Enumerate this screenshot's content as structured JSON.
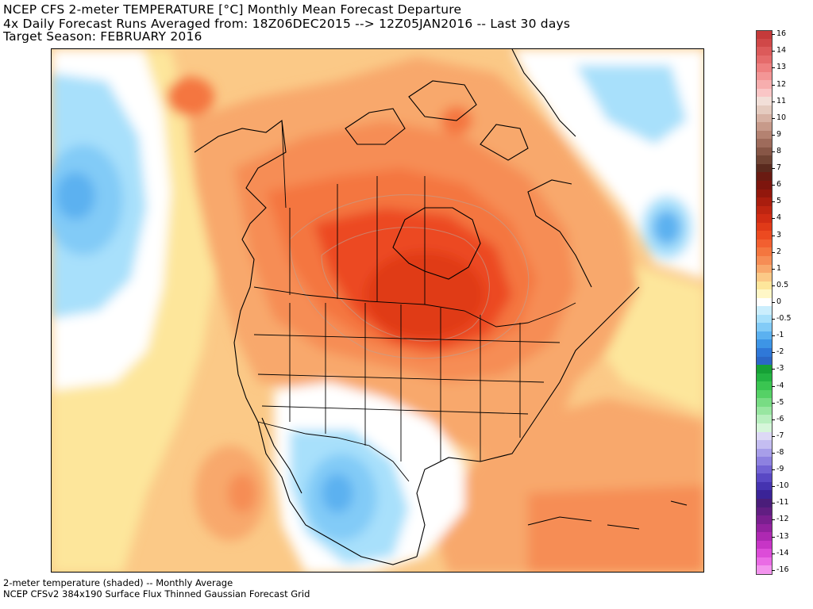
{
  "header": {
    "line1": "NCEP CFS 2-meter TEMPERATURE [°C] Monthly Mean Forecast Departure",
    "line2": "4x Daily Forecast Runs Averaged from: 18Z06DEC2015 --> 12Z05JAN2016 -- Last 30 days",
    "line3": "Target Season: FEBRUARY 2016"
  },
  "footer": {
    "line1": "2-meter temperature (shaded) -- Monthly Average",
    "line2": "NCEP CFSv2 384x190 Surface Flux Thinned Gaussian Forecast Grid"
  },
  "map": {
    "region": "North America",
    "variable": "2-meter temperature departure"
  },
  "legend": {
    "unit": "°C",
    "bins": [
      {
        "label": "16",
        "color": "#c53a3a"
      },
      {
        "label": "",
        "color": "#d04848"
      },
      {
        "label": "14",
        "color": "#dc5a5a"
      },
      {
        "label": "",
        "color": "#e56b6b"
      },
      {
        "label": "13",
        "color": "#ee8080"
      },
      {
        "label": "",
        "color": "#f39696"
      },
      {
        "label": "12",
        "color": "#f7aeae"
      },
      {
        "label": "",
        "color": "#fac6c6"
      },
      {
        "label": "11",
        "color": "#f2dfd8"
      },
      {
        "label": "",
        "color": "#e5cbbf"
      },
      {
        "label": "10",
        "color": "#d7b2a4"
      },
      {
        "label": "",
        "color": "#c79a8a"
      },
      {
        "label": "9",
        "color": "#b48271"
      },
      {
        "label": "",
        "color": "#9e6b5b"
      },
      {
        "label": "8",
        "color": "#875646"
      },
      {
        "label": "",
        "color": "#704333"
      },
      {
        "label": "7",
        "color": "#5a2a1e"
      },
      {
        "label": "",
        "color": "#6a1b12"
      },
      {
        "label": "6",
        "color": "#7d150d"
      },
      {
        "label": "",
        "color": "#92170c"
      },
      {
        "label": "5",
        "color": "#a91d0e"
      },
      {
        "label": "",
        "color": "#be2511"
      },
      {
        "label": "4",
        "color": "#d02c14"
      },
      {
        "label": "",
        "color": "#e03a18"
      },
      {
        "label": "3",
        "color": "#ec4a20"
      },
      {
        "label": "",
        "color": "#f25f30"
      },
      {
        "label": "2",
        "color": "#f4763f"
      },
      {
        "label": "",
        "color": "#f68d55"
      },
      {
        "label": "1",
        "color": "#f8a86c"
      },
      {
        "label": "",
        "color": "#fbc987"
      },
      {
        "label": "0.5",
        "color": "#fde69b"
      },
      {
        "label": "",
        "color": "#fff7c7"
      },
      {
        "label": "0",
        "color": "#ffffff"
      },
      {
        "label": "",
        "color": "#cbeefd"
      },
      {
        "label": "-0.5",
        "color": "#a8e0fb"
      },
      {
        "label": "",
        "color": "#82cbf7"
      },
      {
        "label": "-1",
        "color": "#5bb1f0"
      },
      {
        "label": "",
        "color": "#3d95e6"
      },
      {
        "label": "-2",
        "color": "#2f78d8"
      },
      {
        "label": "",
        "color": "#2b67c6"
      },
      {
        "label": "-3",
        "color": "#16a136"
      },
      {
        "label": "",
        "color": "#23b342"
      },
      {
        "label": "-4",
        "color": "#3ac551"
      },
      {
        "label": "",
        "color": "#55d166"
      },
      {
        "label": "-5",
        "color": "#78dc84"
      },
      {
        "label": "",
        "color": "#98e6a1"
      },
      {
        "label": "-6",
        "color": "#b8efbf"
      },
      {
        "label": "",
        "color": "#d6f6da"
      },
      {
        "label": "-7",
        "color": "#ddd9f6"
      },
      {
        "label": "",
        "color": "#c4bdf1"
      },
      {
        "label": "-8",
        "color": "#a79ee9"
      },
      {
        "label": "",
        "color": "#8d81e0"
      },
      {
        "label": "-9",
        "color": "#7263d4"
      },
      {
        "label": "",
        "color": "#5948c4"
      },
      {
        "label": "-10",
        "color": "#4533b0"
      },
      {
        "label": "",
        "color": "#3a2397"
      },
      {
        "label": "-11",
        "color": "#4a1d7a"
      },
      {
        "label": "",
        "color": "#611e82"
      },
      {
        "label": "-12",
        "color": "#7a1f8f"
      },
      {
        "label": "",
        "color": "#93229f"
      },
      {
        "label": "-13",
        "color": "#ae29b2"
      },
      {
        "label": "",
        "color": "#c735c6"
      },
      {
        "label": "-14",
        "color": "#dc4cd8"
      },
      {
        "label": "",
        "color": "#ea6be5"
      },
      {
        "label": "-16",
        "color": "#f394ee"
      }
    ]
  }
}
